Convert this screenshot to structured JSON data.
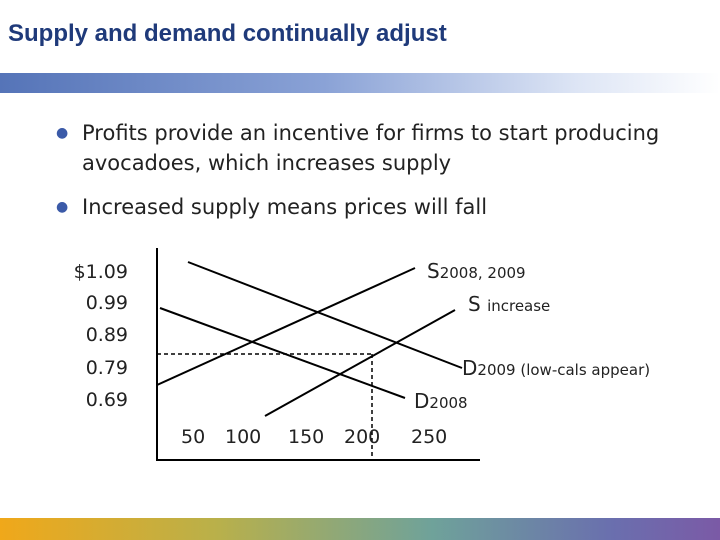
{
  "slide": {
    "title": "Supply and demand continually adjust",
    "bullets": [
      "Profits provide an incentive for firms to start producing avocadoes, which increases supply",
      "Increased supply means prices will fall"
    ]
  },
  "chart_data": {
    "type": "line",
    "price_labels": [
      "$1.09",
      "0.99",
      "0.89",
      "0.79",
      "0.69"
    ],
    "quantity_labels": [
      "50",
      "100",
      "150",
      "200",
      "250"
    ],
    "curve_labels": {
      "s_main": "S",
      "s_main_sub": "2008, 2009",
      "s_increase": "S",
      "s_increase_sub": "increase",
      "d_2009": "D",
      "d_2009_sub": "2009 (low-cals appear)",
      "d_2008": "D",
      "d_2008_sub": "2008"
    },
    "equilibrium": {
      "quantity": 200,
      "price": 0.79
    }
  },
  "colors": {
    "title": "#1f3a7a",
    "bullet_marker": "#3b5aa8",
    "lines": "#000000"
  }
}
